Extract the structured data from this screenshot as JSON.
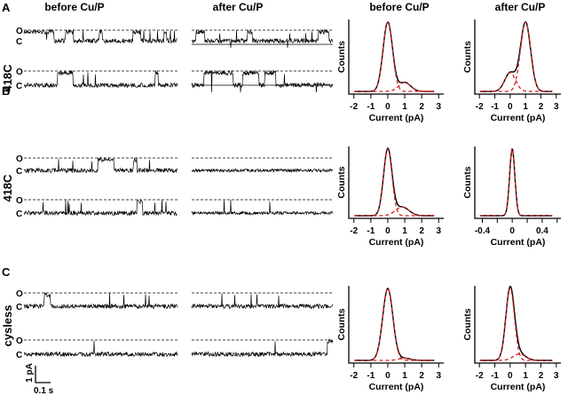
{
  "panels": [
    {
      "letter": "A",
      "row_label": "418C",
      "col_before": "before Cu/P",
      "col_after": "after Cu/P",
      "hist_before_title": "before Cu/P",
      "hist_after_title": "after Cu/P"
    },
    {
      "letter": "B",
      "row_label": "418C"
    },
    {
      "letter": "C",
      "row_label": "cysless"
    }
  ],
  "trace_labels": {
    "open": "O",
    "closed": "C"
  },
  "scale_bar": {
    "current": "1 pA",
    "time": "0.1 s"
  },
  "colors": {
    "trace": "#000000",
    "fit": "#d42020"
  },
  "chart_data": [
    {
      "type": "line",
      "panel": "A",
      "title": "before Cu/P",
      "xlabel": "Current (pA)",
      "ylabel": "Counts",
      "xticks": [
        -2,
        -1,
        0,
        1,
        2,
        3
      ],
      "xlim": [
        -2.3,
        3.3
      ],
      "components": [
        {
          "mean": 0,
          "sd": 0.28,
          "amp": 1
        },
        {
          "mean": 1.0,
          "sd": 0.35,
          "amp": 0.13
        }
      ]
    },
    {
      "type": "line",
      "panel": "A",
      "title": "after Cu/P",
      "xlabel": "Current (pA)",
      "ylabel": "Counts",
      "xticks": [
        -2,
        -1,
        0,
        1,
        2,
        3
      ],
      "xlim": [
        -2.3,
        3.3
      ],
      "components": [
        {
          "mean": 0,
          "sd": 0.35,
          "amp": 0.27
        },
        {
          "mean": 1.0,
          "sd": 0.33,
          "amp": 1
        }
      ]
    },
    {
      "type": "line",
      "panel": "B",
      "title": "",
      "xlabel": "Current (pA)",
      "ylabel": "Counts",
      "xticks": [
        -2,
        -1,
        0,
        1,
        2,
        3
      ],
      "xlim": [
        -2.3,
        3.3
      ],
      "components": [
        {
          "mean": 0,
          "sd": 0.25,
          "amp": 1
        },
        {
          "mean": 0.85,
          "sd": 0.4,
          "amp": 0.13
        }
      ]
    },
    {
      "type": "line",
      "panel": "B",
      "title": "",
      "xlabel": "Current (pA)",
      "ylabel": "Counts",
      "xticks": [
        -0.4,
        -0.2,
        0,
        0.2,
        0.4,
        0.6
      ],
      "xtick_labels": [
        "-0.4",
        "",
        "0",
        "",
        "0.4",
        ""
      ],
      "xlim": [
        -0.5,
        0.65
      ],
      "components": [
        {
          "mean": 0,
          "sd": 0.035,
          "amp": 1
        }
      ]
    },
    {
      "type": "line",
      "panel": "C",
      "title": "",
      "xlabel": "Current (pA)",
      "ylabel": "Counts",
      "xticks": [
        -2,
        -1,
        0,
        1,
        2,
        3
      ],
      "xlim": [
        -2.3,
        3.3
      ],
      "components": [
        {
          "mean": 0,
          "sd": 0.3,
          "amp": 1
        },
        {
          "mean": 1.0,
          "sd": 0.35,
          "amp": 0.03
        }
      ]
    },
    {
      "type": "line",
      "panel": "C",
      "title": "",
      "xlabel": "Current (pA)",
      "ylabel": "Counts",
      "xticks": [
        -2,
        -1,
        0,
        1,
        2,
        3
      ],
      "xlim": [
        -2.3,
        3.3
      ],
      "components": [
        {
          "mean": 0,
          "sd": 0.28,
          "amp": 1
        },
        {
          "mean": 0.6,
          "sd": 0.4,
          "amp": 0.09
        }
      ]
    }
  ]
}
